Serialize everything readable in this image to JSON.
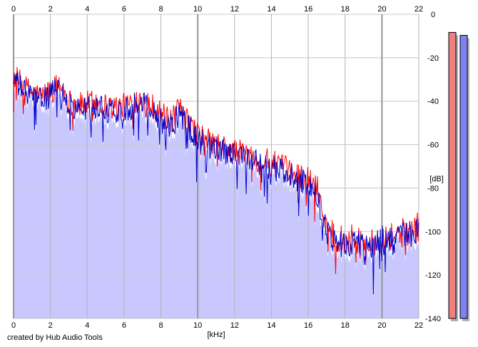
{
  "credit": "created by Hub Audio Tools",
  "colors": {
    "fill": "#c8c8ff",
    "grid": "#c8c8c8",
    "grid_major": "#969696",
    "left_channel": "#ff0000",
    "right_channel": "#0000cc",
    "meter_left": "#f08080",
    "meter_right": "#8080f0"
  },
  "chart_data": {
    "type": "line",
    "title": "",
    "xlabel": "[kHz]",
    "ylabel": "[dB]",
    "xlim": [
      0,
      22
    ],
    "ylim": [
      -140,
      0
    ],
    "x_ticks": [
      "0",
      "2",
      "4",
      "6",
      "8",
      "10",
      "12",
      "14",
      "16",
      "18",
      "20",
      "22"
    ],
    "y_ticks": [
      "0",
      "-20",
      "-40",
      "-60",
      "-80",
      "-100",
      "-120",
      "-140"
    ],
    "grid": true,
    "x": [
      0.0,
      0.5,
      1.0,
      1.5,
      2.0,
      2.5,
      3.0,
      3.5,
      4.0,
      4.5,
      5.0,
      5.5,
      6.0,
      6.5,
      7.0,
      7.5,
      8.0,
      8.5,
      9.0,
      9.5,
      10.0,
      10.5,
      11.0,
      11.5,
      12.0,
      12.5,
      13.0,
      13.5,
      14.0,
      14.5,
      15.0,
      15.5,
      16.0,
      16.5,
      17.0,
      17.5,
      18.0,
      18.5,
      19.0,
      19.5,
      20.0,
      20.5,
      21.0,
      21.5,
      22.0
    ],
    "series": [
      {
        "values": [
          -28,
          -33,
          -36,
          -38,
          -35,
          -32,
          -40,
          -42,
          -41,
          -40,
          -42,
          -43,
          -42,
          -40,
          -38,
          -42,
          -45,
          -50,
          -44,
          -50,
          -55,
          -58,
          -60,
          -62,
          -63,
          -64,
          -66,
          -67,
          -68,
          -70,
          -72,
          -74,
          -76,
          -80,
          -98,
          -102,
          -104,
          -103,
          -104,
          -106,
          -102,
          -102,
          -101,
          -100,
          -98
        ]
      },
      {
        "values": [
          -30,
          -35,
          -38,
          -40,
          -37,
          -34,
          -42,
          -44,
          -43,
          -42,
          -44,
          -45,
          -44,
          -42,
          -40,
          -44,
          -48,
          -52,
          -46,
          -52,
          -57,
          -60,
          -62,
          -64,
          -65,
          -66,
          -68,
          -69,
          -70,
          -72,
          -74,
          -76,
          -79,
          -84,
          -100,
          -104,
          -106,
          -105,
          -106,
          -108,
          -104,
          -104,
          -103,
          -102,
          -100
        ]
      }
    ],
    "meters": [
      {
        "level": 0.97
      },
      {
        "level": 0.96
      }
    ]
  }
}
